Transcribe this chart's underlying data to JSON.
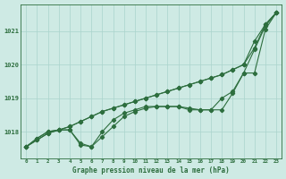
{
  "title": "Graphe pression niveau de la mer (hPa)",
  "bg_color": "#ceeae4",
  "grid_color": "#aad4cc",
  "line_color": "#2d6e3e",
  "x_labels": [
    "0",
    "1",
    "2",
    "3",
    "4",
    "5",
    "6",
    "7",
    "8",
    "9",
    "10",
    "11",
    "12",
    "13",
    "14",
    "15",
    "16",
    "17",
    "18",
    "19",
    "20",
    "21",
    "22",
    "23"
  ],
  "y_ticks": [
    1018,
    1019,
    1020,
    1021
  ],
  "ylim": [
    1017.2,
    1021.8
  ],
  "xlim": [
    -0.5,
    23.5
  ],
  "series": {
    "line_straight1": [
      1017.55,
      1017.75,
      1017.95,
      1018.05,
      1018.15,
      1018.3,
      1018.45,
      1018.6,
      1018.7,
      1018.8,
      1018.9,
      1019.0,
      1019.1,
      1019.2,
      1019.3,
      1019.4,
      1019.5,
      1019.6,
      1019.7,
      1019.85,
      1020.0,
      1020.5,
      1021.2,
      1021.55
    ],
    "line_straight2": [
      1017.55,
      1017.75,
      1017.95,
      1018.05,
      1018.15,
      1018.3,
      1018.45,
      1018.6,
      1018.7,
      1018.8,
      1018.9,
      1019.0,
      1019.1,
      1019.2,
      1019.3,
      1019.4,
      1019.5,
      1019.6,
      1019.7,
      1019.85,
      1020.0,
      1020.7,
      1021.2,
      1021.55
    ],
    "line_mid": [
      1017.55,
      1017.8,
      1018.0,
      1018.05,
      1018.05,
      1017.65,
      1017.55,
      1018.0,
      1018.35,
      1018.55,
      1018.65,
      1018.75,
      1018.75,
      1018.75,
      1018.75,
      1018.7,
      1018.65,
      1018.65,
      1019.0,
      1019.2,
      1019.75,
      1020.45,
      1021.15,
      1021.55
    ],
    "line_dip": [
      1017.55,
      1017.8,
      1018.0,
      1018.05,
      1018.05,
      1017.6,
      1017.55,
      1017.85,
      1018.15,
      1018.45,
      1018.6,
      1018.7,
      1018.75,
      1018.75,
      1018.75,
      1018.65,
      1018.65,
      1018.65,
      1018.65,
      1019.15,
      1019.75,
      1019.75,
      1021.05,
      1021.55
    ]
  },
  "marker_size": 2.2,
  "line_width": 0.8
}
